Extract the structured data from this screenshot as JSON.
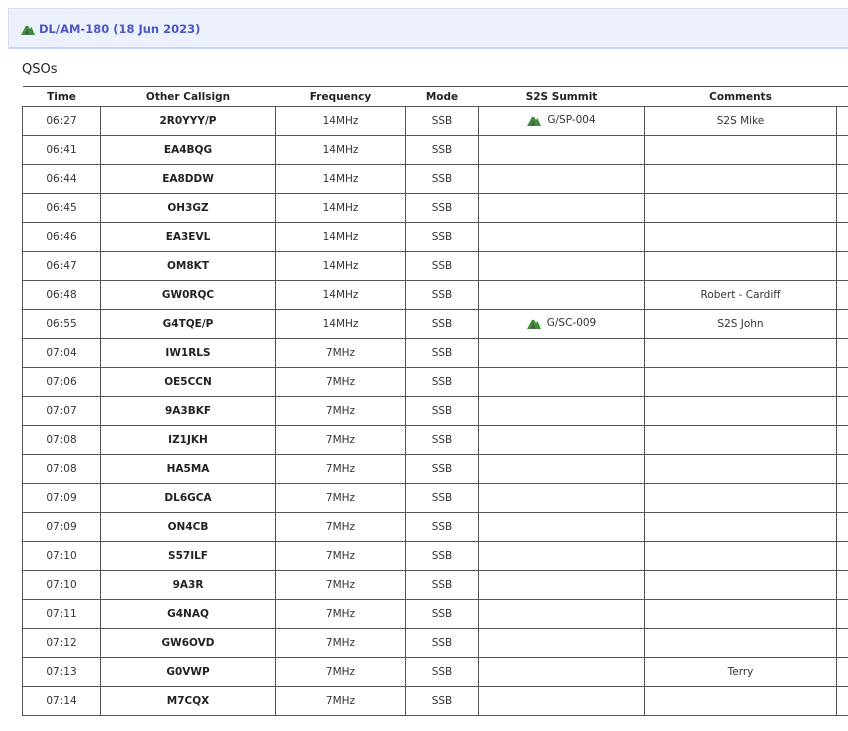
{
  "header": {
    "title": "DL/AM-180 (18 Jun 2023)",
    "icon": "mountain-icon"
  },
  "section_title": "QSOs",
  "columns": [
    "Time",
    "Other Callsign",
    "Frequency",
    "Mode",
    "S2S Summit",
    "Comments"
  ],
  "rows": [
    {
      "time": "06:27",
      "call": "2R0YYY/P",
      "freq": "14MHz",
      "mode": "SSB",
      "summit": "G/SP-004",
      "comment": "S2S Mike"
    },
    {
      "time": "06:41",
      "call": "EA4BQG",
      "freq": "14MHz",
      "mode": "SSB",
      "summit": "",
      "comment": ""
    },
    {
      "time": "06:44",
      "call": "EA8DDW",
      "freq": "14MHz",
      "mode": "SSB",
      "summit": "",
      "comment": ""
    },
    {
      "time": "06:45",
      "call": "OH3GZ",
      "freq": "14MHz",
      "mode": "SSB",
      "summit": "",
      "comment": ""
    },
    {
      "time": "06:46",
      "call": "EA3EVL",
      "freq": "14MHz",
      "mode": "SSB",
      "summit": "",
      "comment": ""
    },
    {
      "time": "06:47",
      "call": "OM8KT",
      "freq": "14MHz",
      "mode": "SSB",
      "summit": "",
      "comment": ""
    },
    {
      "time": "06:48",
      "call": "GW0RQC",
      "freq": "14MHz",
      "mode": "SSB",
      "summit": "",
      "comment": "Robert - Cardiff"
    },
    {
      "time": "06:55",
      "call": "G4TQE/P",
      "freq": "14MHz",
      "mode": "SSB",
      "summit": "G/SC-009",
      "comment": "S2S John"
    },
    {
      "time": "07:04",
      "call": "IW1RLS",
      "freq": "7MHz",
      "mode": "SSB",
      "summit": "",
      "comment": ""
    },
    {
      "time": "07:06",
      "call": "OE5CCN",
      "freq": "7MHz",
      "mode": "SSB",
      "summit": "",
      "comment": ""
    },
    {
      "time": "07:07",
      "call": "9A3BKF",
      "freq": "7MHz",
      "mode": "SSB",
      "summit": "",
      "comment": ""
    },
    {
      "time": "07:08",
      "call": "IZ1JKH",
      "freq": "7MHz",
      "mode": "SSB",
      "summit": "",
      "comment": ""
    },
    {
      "time": "07:08",
      "call": "HA5MA",
      "freq": "7MHz",
      "mode": "SSB",
      "summit": "",
      "comment": ""
    },
    {
      "time": "07:09",
      "call": "DL6GCA",
      "freq": "7MHz",
      "mode": "SSB",
      "summit": "",
      "comment": ""
    },
    {
      "time": "07:09",
      "call": "ON4CB",
      "freq": "7MHz",
      "mode": "SSB",
      "summit": "",
      "comment": ""
    },
    {
      "time": "07:10",
      "call": "S57ILF",
      "freq": "7MHz",
      "mode": "SSB",
      "summit": "",
      "comment": ""
    },
    {
      "time": "07:10",
      "call": "9A3R",
      "freq": "7MHz",
      "mode": "SSB",
      "summit": "",
      "comment": ""
    },
    {
      "time": "07:11",
      "call": "G4NAQ",
      "freq": "7MHz",
      "mode": "SSB",
      "summit": "",
      "comment": ""
    },
    {
      "time": "07:12",
      "call": "GW6OVD",
      "freq": "7MHz",
      "mode": "SSB",
      "summit": "",
      "comment": ""
    },
    {
      "time": "07:13",
      "call": "G0VWP",
      "freq": "7MHz",
      "mode": "SSB",
      "summit": "",
      "comment": "Terry"
    },
    {
      "time": "07:14",
      "call": "M7CQX",
      "freq": "7MHz",
      "mode": "SSB",
      "summit": "",
      "comment": ""
    }
  ]
}
